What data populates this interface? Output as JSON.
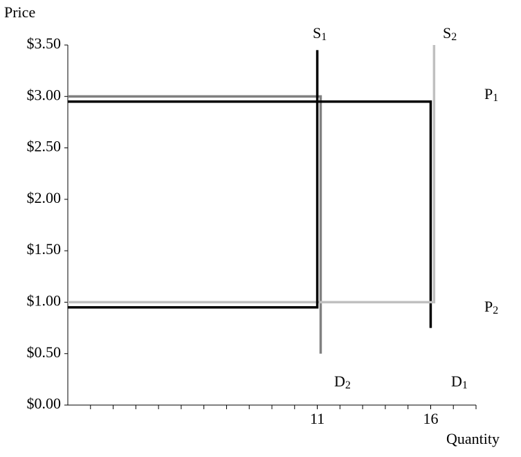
{
  "chart_data": {
    "type": "line",
    "y_label": "Price",
    "x_label": "Quantity",
    "xlim": [
      0,
      18
    ],
    "ylim": [
      0,
      3.5
    ],
    "xticks": [
      11,
      16
    ],
    "x_minor_ticks": [
      1,
      2,
      3,
      4,
      5,
      6,
      7,
      8,
      9,
      10,
      11,
      12,
      13,
      14,
      15,
      16,
      17,
      18
    ],
    "yticks": [
      {
        "value": 0,
        "label": "$0.00"
      },
      {
        "value": 0.5,
        "label": "$0.50"
      },
      {
        "value": 1,
        "label": "$1.00"
      },
      {
        "value": 1.5,
        "label": "$1.50"
      },
      {
        "value": 2,
        "label": "$2.00"
      },
      {
        "value": 2.5,
        "label": "$2.50"
      },
      {
        "value": 3,
        "label": "$3.00"
      },
      {
        "value": 3.5,
        "label": "$3.50"
      }
    ],
    "series": [
      {
        "color": "#808080",
        "x": [
          0,
          11.15,
          11.15
        ],
        "values": [
          3.0,
          3.0,
          0.5
        ]
      },
      {
        "color": "#000000",
        "x": [
          0,
          16,
          16
        ],
        "values": [
          2.95,
          2.95,
          0.75
        ]
      },
      {
        "color": "#c0c0c0",
        "x": [
          0,
          16.15,
          16.15
        ],
        "values": [
          1.0,
          1.0,
          3.5
        ]
      },
      {
        "color": "#000000",
        "x": [
          0,
          11,
          11
        ],
        "values": [
          0.95,
          0.95,
          3.45
        ]
      }
    ],
    "annotations": [
      {
        "text": "S",
        "sub": "1"
      },
      {
        "text": "S",
        "sub": "2"
      },
      {
        "text": "P",
        "sub": "1"
      },
      {
        "text": "P",
        "sub": "2"
      },
      {
        "text": "D",
        "sub": "2"
      },
      {
        "text": "D",
        "sub": "1"
      }
    ]
  }
}
